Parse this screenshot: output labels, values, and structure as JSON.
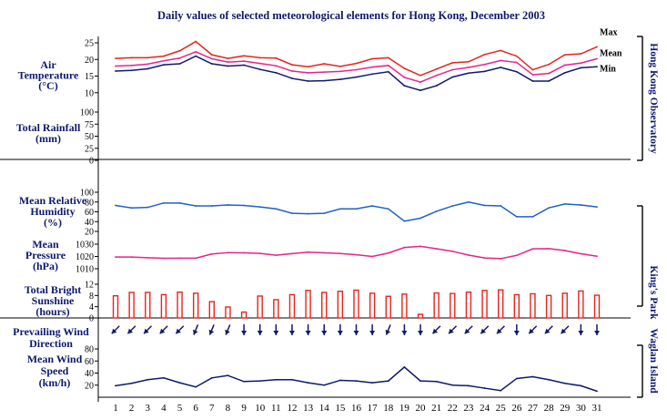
{
  "chart_data": {
    "type": "line",
    "title": "Daily values of selected meteorological elements for Hong Kong, December 2003",
    "x": {
      "label": "",
      "days": [
        1,
        2,
        3,
        4,
        5,
        6,
        7,
        8,
        9,
        10,
        11,
        12,
        13,
        14,
        15,
        16,
        17,
        18,
        19,
        20,
        21,
        22,
        23,
        24,
        25,
        26,
        27,
        28,
        29,
        30,
        31
      ],
      "tick_labels": [
        "1",
        "2",
        "3",
        "4",
        "5",
        "6",
        "7",
        "8",
        "9",
        "10",
        "11",
        "12",
        "13",
        "14",
        "15",
        "16",
        "17",
        "18",
        "19",
        "20",
        "21",
        "22",
        "23",
        "24",
        "25",
        "26",
        "27",
        "28",
        "29",
        "30",
        "31"
      ]
    },
    "panels": [
      {
        "id": "air_temperature",
        "label_lines": [
          "Air",
          "Temperature",
          "(°C)"
        ],
        "ylim": [
          5,
          25
        ],
        "ticks": [
          "10",
          "15",
          "20",
          "25"
        ],
        "series": [
          {
            "name": "Max",
            "color": "#e8231c",
            "values": [
              20.3,
              20.5,
              20.5,
              21,
              22.6,
              25.4,
              21.4,
              20.3,
              21.1,
              20.5,
              20.4,
              18.4,
              17.8,
              18.7,
              17.9,
              18.8,
              20.2,
              20.5,
              17.3,
              15.2,
              17.1,
              19,
              19.3,
              21.5,
              22.7,
              21,
              16.9,
              18.5,
              21.4,
              21.7,
              23.8
            ]
          },
          {
            "name": "Mean",
            "color": "#e6248a",
            "values": [
              18,
              18.2,
              18.6,
              19.6,
              20.4,
              22.3,
              20.2,
              19.2,
              19.5,
              18.8,
              18.1,
              16.5,
              16,
              16.2,
              16.4,
              16.9,
              17.7,
              18.2,
              14.6,
              13.2,
              15.2,
              16.9,
              17.6,
              18.5,
              19.7,
              19.1,
              15.4,
              15.8,
              18.3,
              18.9,
              20.2
            ]
          },
          {
            "name": "Min",
            "color": "#0e1a6b",
            "values": [
              16.5,
              16.7,
              17.2,
              18.4,
              18.7,
              21,
              18.7,
              18,
              18.3,
              17,
              16,
              14.3,
              13.5,
              13.6,
              14,
              14.7,
              15.6,
              16.3,
              12.1,
              10.7,
              12.1,
              14.7,
              15.9,
              16.4,
              17.6,
              16.3,
              13.5,
              13.5,
              16,
              17.5,
              17.8
            ]
          }
        ]
      },
      {
        "id": "total_rainfall",
        "label_lines": [
          "Total Rainfall",
          "(mm)"
        ],
        "ylim": [
          0,
          100
        ],
        "ticks": [
          "0",
          "25",
          "50",
          "75",
          "100"
        ],
        "series": [
          {
            "name": "",
            "color": "#e8231c",
            "values": [
              0,
              0,
              0,
              0,
              0,
              0,
              0,
              0,
              0,
              0,
              0,
              0,
              0,
              0,
              0,
              0,
              0,
              0,
              0,
              0,
              0,
              0,
              0,
              0,
              0,
              0,
              0,
              0,
              0,
              0,
              0
            ]
          }
        ]
      },
      {
        "id": "mean_relative_humidity",
        "label_lines": [
          "Mean Relative",
          "Humidity",
          "(%)"
        ],
        "ylim": [
          20,
          100
        ],
        "ticks": [
          "20",
          "40",
          "60",
          "80",
          "100"
        ],
        "series": [
          {
            "name": "",
            "color": "#2060c8",
            "values": [
              73,
              68,
              69,
              78,
              78,
              72,
              72,
              74,
              73,
              70,
              66,
              57,
              56,
              57,
              66,
              66,
              72,
              66,
              41,
              47,
              61,
              72,
              80,
              73,
              72,
              50,
              50,
              68,
              76,
              74,
              70
            ]
          }
        ]
      },
      {
        "id": "mean_pressure",
        "label_lines": [
          "Mean",
          "Pressure",
          "(hPa)"
        ],
        "ylim": [
          1010,
          1030
        ],
        "ticks": [
          "1010",
          "1020",
          "1030"
        ],
        "series": [
          {
            "name": "",
            "color": "#e6248a",
            "values": [
              1019.5,
              1019.5,
              1019,
              1018.5,
              1018.6,
              1018.6,
              1022,
              1023.1,
              1023,
              1022.5,
              1021,
              1022.3,
              1023.5,
              1023,
              1022.4,
              1021.4,
              1020,
              1022.8,
              1027.3,
              1028.2,
              1026.3,
              1024.2,
              1021.1,
              1018.8,
              1018.2,
              1020.9,
              1026.2,
              1026.4,
              1024.8,
              1022.2,
              1020.2
            ]
          }
        ]
      },
      {
        "id": "total_bright_sunshine",
        "label_lines": [
          "Total Bright",
          "Sunshine",
          "(hours)"
        ],
        "ylim": [
          0,
          12
        ],
        "ticks": [
          "0",
          "4",
          "8",
          "12"
        ],
        "series": [
          {
            "name": "",
            "color": "#e8231c",
            "values": [
              7.9,
              9.1,
              9.1,
              8.3,
              9.2,
              8.8,
              5.8,
              3.9,
              2.1,
              7.8,
              6.5,
              8.3,
              9.8,
              9.1,
              9.5,
              9.9,
              8.8,
              7.7,
              8.5,
              1.3,
              8.9,
              8.7,
              9.2,
              9.8,
              10,
              8.3,
              8.6,
              8,
              8.8,
              9.6,
              8.1
            ]
          }
        ]
      },
      {
        "id": "prevailing_wind_direction",
        "label_lines": [
          "Prevailing Wind",
          "Direction"
        ],
        "ylim": null,
        "ticks": [],
        "series": [
          {
            "name": "",
            "color": "#0e1a6b",
            "values": [
              "NE",
              "NE",
              "NE",
              "NE",
              "NE",
              "NNE",
              "NNE",
              "NNE",
              "N",
              "N",
              "N",
              "N",
              "N",
              "N",
              "N",
              "N",
              "N",
              "NNE",
              "N",
              "N",
              "NE",
              "NE",
              "NE",
              "NE",
              "NE",
              "N",
              "NE",
              "NE",
              "NE",
              "N",
              "N"
            ]
          }
        ]
      },
      {
        "id": "mean_wind_speed",
        "label_lines": [
          "Mean Wind",
          "Speed",
          "(km/h)"
        ],
        "ylim": [
          0,
          80
        ],
        "ticks": [
          "20",
          "40",
          "60",
          "80"
        ],
        "series": [
          {
            "name": "",
            "color": "#0e1a6b",
            "values": [
              19,
              23,
              29,
              32,
              24,
              17,
              32,
              36,
              26,
              27,
              29,
              29,
              24,
              20,
              28,
              27,
              24,
              27,
              50,
              27,
              26,
              20,
              19,
              15,
              11,
              31,
              34,
              29,
              23,
              19,
              10
            ]
          }
        ]
      }
    ],
    "station_labels": [
      "Hong Kong Observatory",
      "King's Park",
      "Waglan Island"
    ],
    "grid": false,
    "legend": "right-inline"
  }
}
